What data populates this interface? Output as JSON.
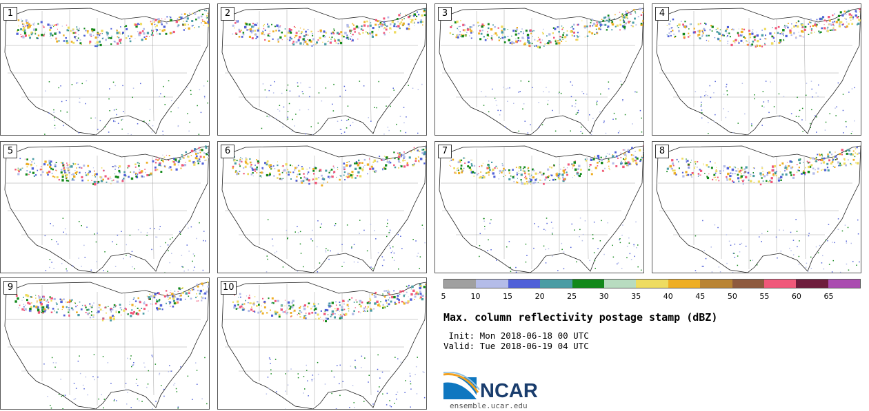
{
  "panels": [
    {
      "label": "1"
    },
    {
      "label": "2"
    },
    {
      "label": "3"
    },
    {
      "label": "4"
    },
    {
      "label": "5"
    },
    {
      "label": "6"
    },
    {
      "label": "7"
    },
    {
      "label": "8"
    },
    {
      "label": "9"
    },
    {
      "label": "10"
    }
  ],
  "colorbar": {
    "colors": [
      "#a0a0a0",
      "#b4bce8",
      "#5060d8",
      "#4a9ca4",
      "#12881a",
      "#b8dcc0",
      "#eedc60",
      "#eeae24",
      "#b98434",
      "#8e5a3e",
      "#f0587a",
      "#6e1c3c",
      "#aa4cb0"
    ],
    "ticks": [
      "5",
      "10",
      "15",
      "20",
      "25",
      "30",
      "35",
      "40",
      "45",
      "50",
      "55",
      "60",
      "65"
    ]
  },
  "title": "Max. column reflectivity postage stamp (dBZ)",
  "init": " Init: Mon 2018-06-18 00 UTC",
  "valid": "Valid: Tue 2018-06-19 04 UTC",
  "logo": {
    "text": "NCAR",
    "site": "ensemble.ucar.edu"
  }
}
